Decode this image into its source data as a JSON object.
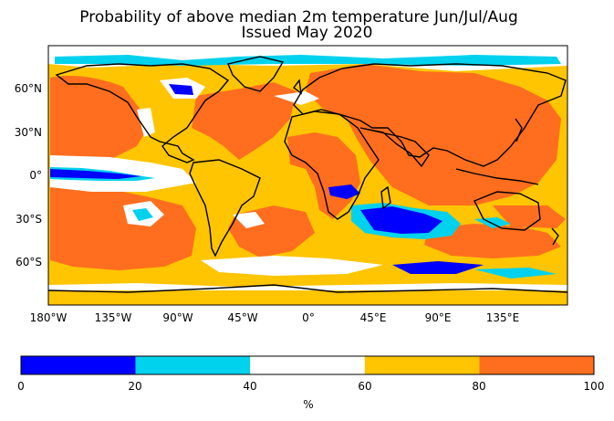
{
  "title_line1": "Probability of above median 2m temperature Jun/Jul/Aug",
  "title_line2": "Issued May 2020",
  "lat_ticks": [
    "60°N",
    "30°N",
    "0°",
    "30°S",
    "60°S"
  ],
  "lon_ticks": [
    "180°W",
    "135°W",
    "90°W",
    "45°W",
    "0°",
    "45°E",
    "90°E",
    "135°E"
  ],
  "colorbar": {
    "ticks": [
      "0",
      "20",
      "40",
      "60",
      "80",
      "100"
    ],
    "colors": [
      "#0000ff",
      "#00d2ee",
      "#ffffff",
      "#ffc500",
      "#ff6e1e"
    ],
    "units": "%"
  }
}
